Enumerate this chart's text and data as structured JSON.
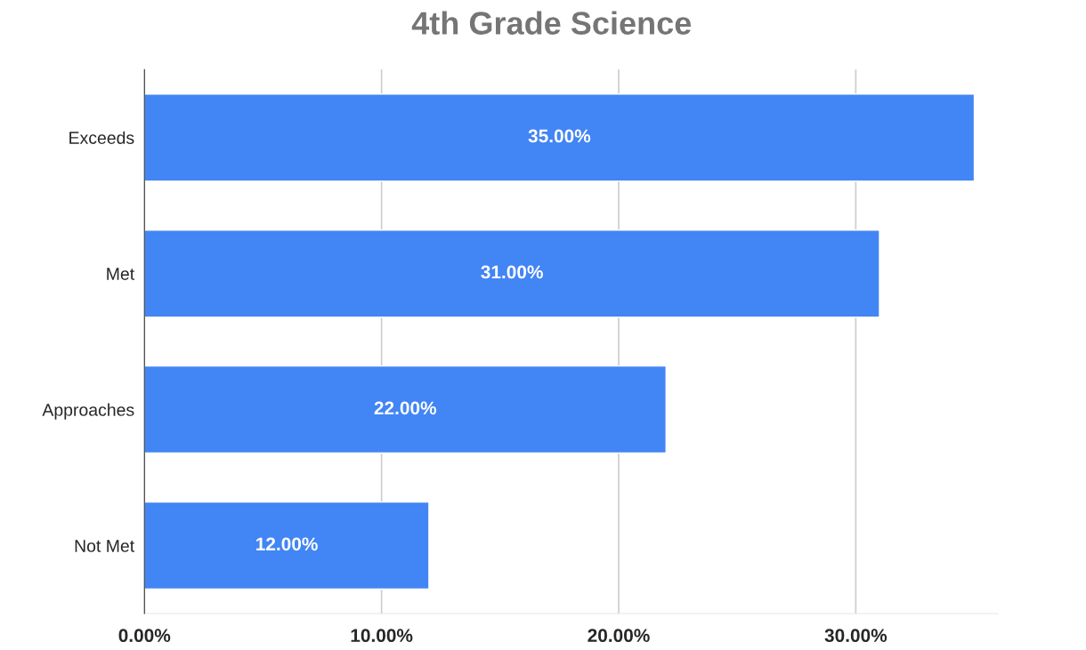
{
  "chart_data": {
    "type": "bar",
    "orientation": "horizontal",
    "title": "4th Grade Science",
    "categories": [
      "Exceeds",
      "Met",
      "Approaches",
      "Not Met"
    ],
    "values": [
      35,
      31,
      22,
      12
    ],
    "value_labels": [
      "35.00%",
      "31.00%",
      "22.00%",
      "12.00%"
    ],
    "color": "#4285f4",
    "xlim": [
      0,
      36
    ],
    "xticks": [
      {
        "value": 0,
        "label": "0.00%"
      },
      {
        "value": 10,
        "label": "10.00%"
      },
      {
        "value": 20,
        "label": "20.00%"
      },
      {
        "value": 30,
        "label": "30.00%"
      }
    ],
    "grid": "x",
    "legend": false
  }
}
